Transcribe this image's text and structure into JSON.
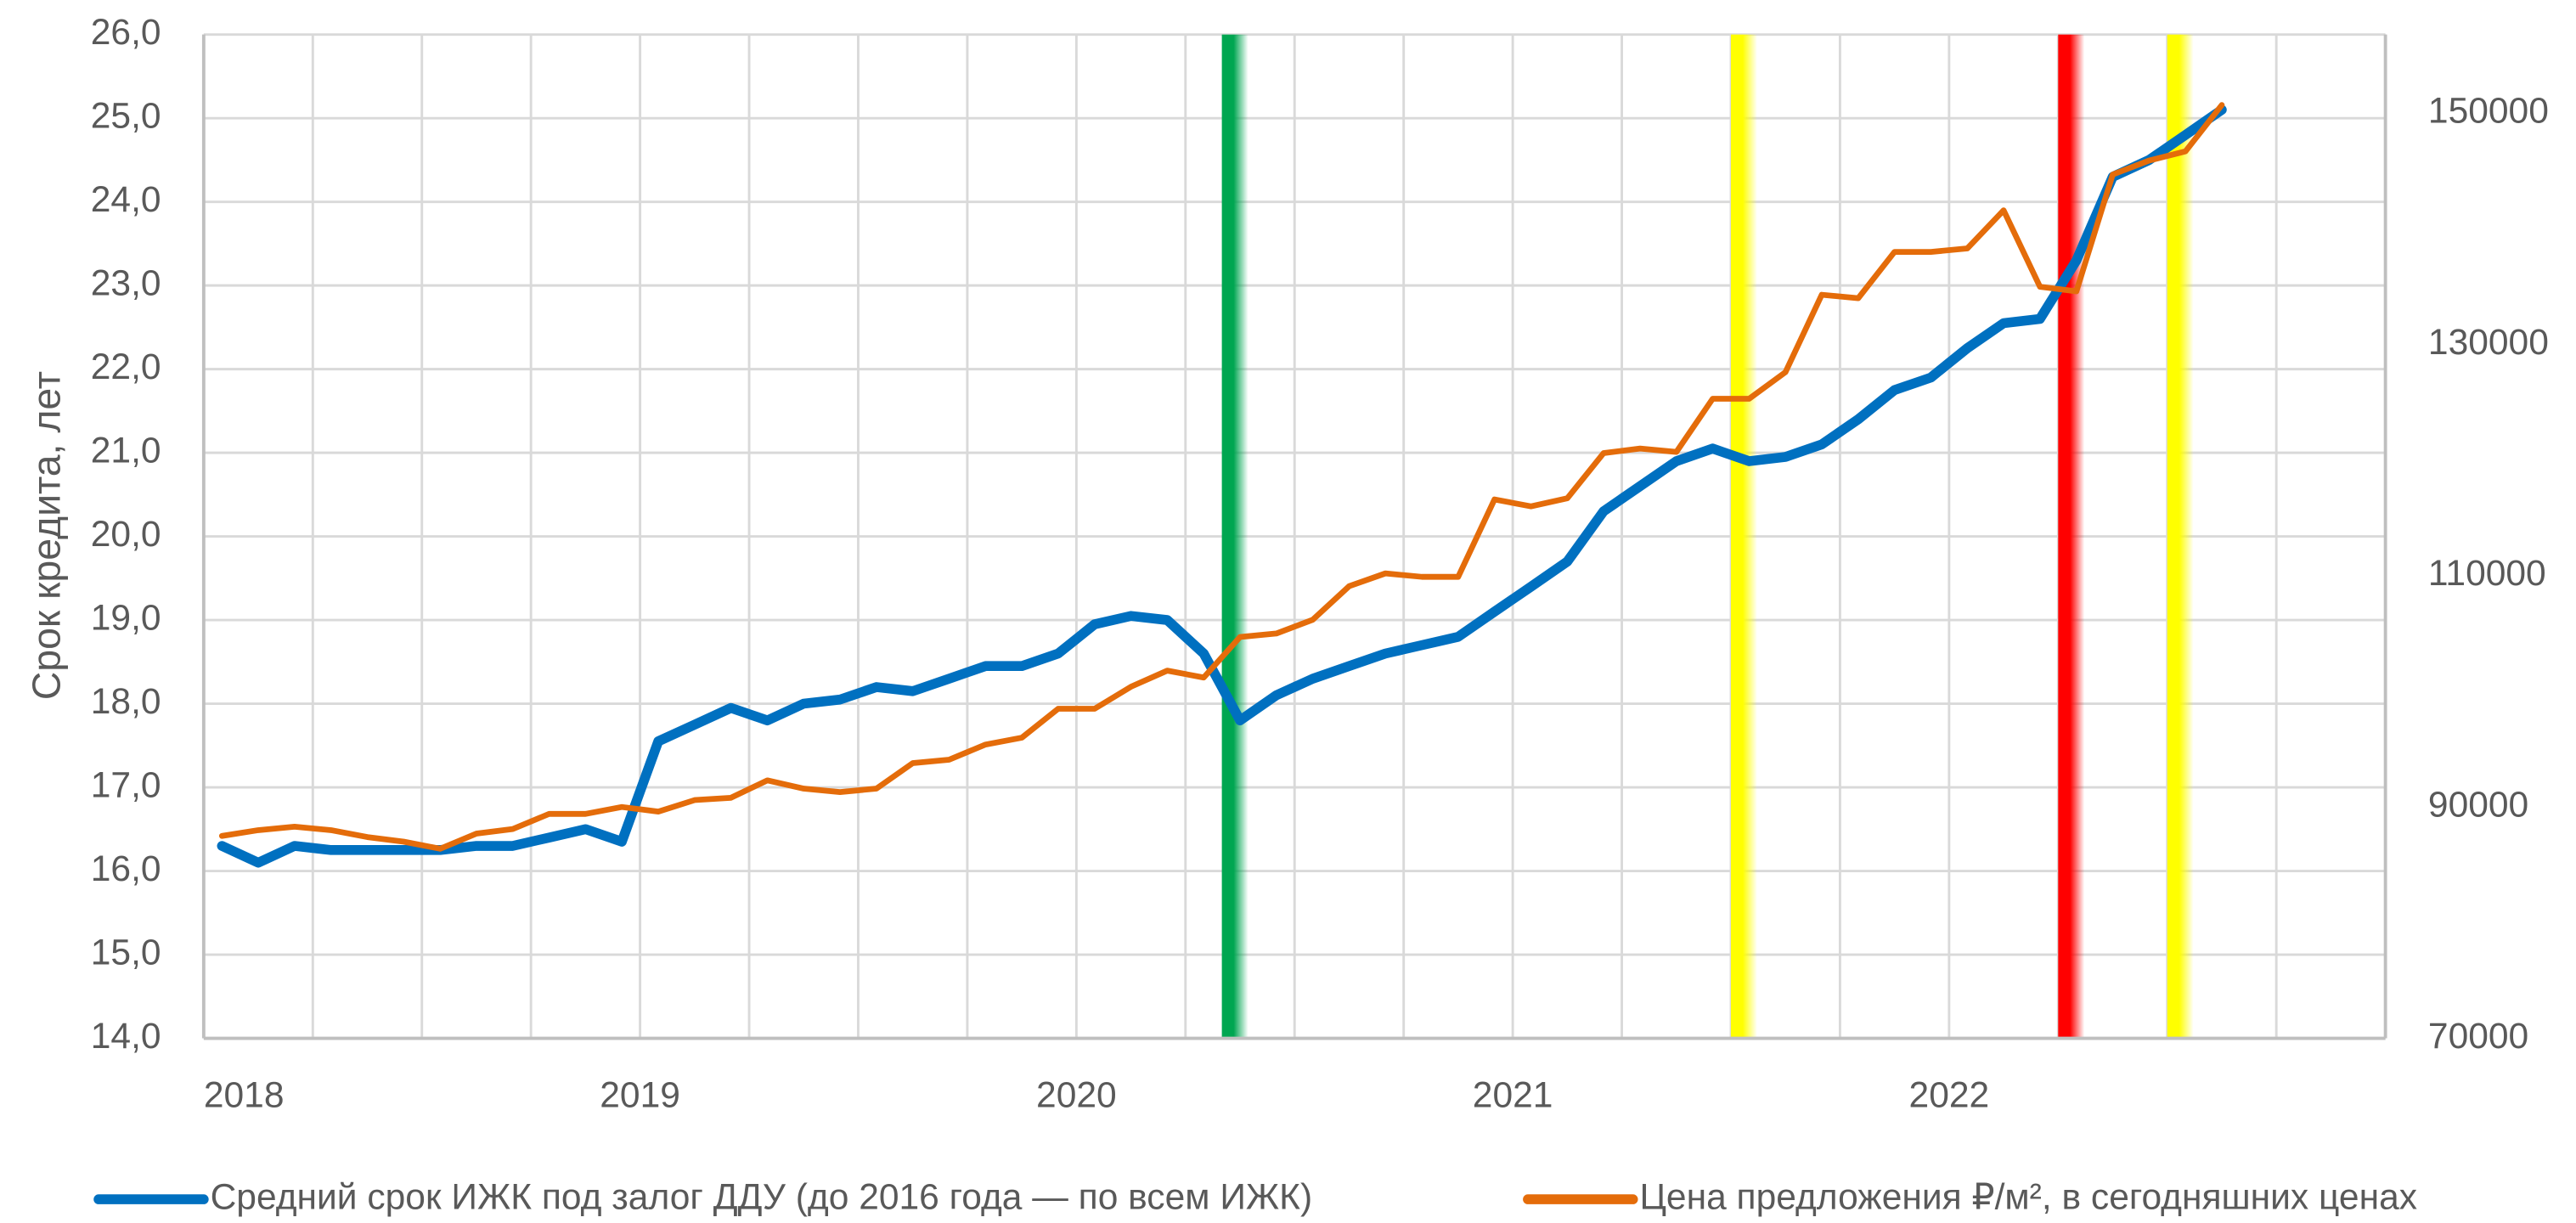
{
  "chart_data": {
    "type": "line",
    "y_axis_label": "Срок кредита, лет",
    "categories": [
      "2018",
      null,
      null,
      null,
      null,
      null,
      null,
      null,
      null,
      null,
      null,
      null,
      "2019",
      null,
      null,
      null,
      null,
      null,
      null,
      null,
      null,
      null,
      null,
      null,
      "2020",
      null,
      null,
      null,
      null,
      null,
      null,
      null,
      null,
      null,
      null,
      null,
      "2021",
      null,
      null,
      null,
      null,
      null,
      null,
      null,
      null,
      null,
      null,
      null,
      "2022",
      null,
      null,
      null,
      null,
      null,
      null,
      null,
      null,
      null,
      null,
      null
    ],
    "series": [
      {
        "name": "Средний срок ИЖК под залог ДДУ (до 2016 года — по всем ИЖК)",
        "color": "#0070c0",
        "axis": "y",
        "values": [
          16.3,
          16.1,
          16.3,
          16.25,
          16.25,
          16.25,
          16.25,
          16.3,
          16.3,
          16.4,
          16.5,
          16.35,
          17.55,
          17.75,
          17.95,
          17.8,
          18.0,
          18.05,
          18.2,
          18.15,
          18.3,
          18.45,
          18.45,
          18.6,
          18.95,
          19.05,
          19.0,
          18.6,
          17.8,
          18.1,
          18.3,
          18.45,
          18.6,
          18.7,
          18.8,
          19.1,
          19.4,
          19.7,
          20.3,
          20.6,
          20.9,
          21.05,
          20.9,
          20.95,
          21.1,
          21.4,
          21.75,
          21.9,
          22.25,
          22.55,
          22.6,
          23.3,
          24.3,
          24.5,
          24.8,
          25.1,
          null,
          null,
          null,
          null
        ]
      },
      {
        "name": "Цена предложения ₽/м², в сегодняшних ценах",
        "color": "#e46c0a",
        "axis": "y2",
        "values": [
          87500,
          88000,
          88300,
          88000,
          87400,
          87000,
          86400,
          87700,
          88100,
          89400,
          89400,
          90000,
          89600,
          90600,
          90800,
          92300,
          91600,
          91300,
          91600,
          93800,
          94100,
          95400,
          96000,
          98500,
          98500,
          100400,
          101800,
          101200,
          104700,
          105000,
          106200,
          109100,
          110200,
          109900,
          109900,
          116600,
          116000,
          116700,
          120600,
          121000,
          120700,
          125300,
          125300,
          127600,
          134300,
          134000,
          138000,
          138000,
          138300,
          141600,
          135000,
          134600,
          144700,
          145900,
          146700,
          150700,
          null,
          null,
          null,
          null
        ]
      }
    ],
    "ylim": [
      14,
      26
    ],
    "yticks": [
      {
        "value": 14,
        "label": "14,0"
      },
      {
        "value": 15,
        "label": "15,0"
      },
      {
        "value": 16,
        "label": "16,0"
      },
      {
        "value": 17,
        "label": "17,0"
      },
      {
        "value": 18,
        "label": "18,0"
      },
      {
        "value": 19,
        "label": "19,0"
      },
      {
        "value": 20,
        "label": "20,0"
      },
      {
        "value": 21,
        "label": "21,0"
      },
      {
        "value": 22,
        "label": "22,0"
      },
      {
        "value": 23,
        "label": "23,0"
      },
      {
        "value": 24,
        "label": "24,0"
      },
      {
        "value": 25,
        "label": "25,0"
      },
      {
        "value": 26,
        "label": "26,0"
      }
    ],
    "y2lim": [
      70000,
      156800
    ],
    "y2ticks": [
      70000,
      90000,
      110000,
      130000,
      150000
    ],
    "highlights": [
      {
        "index": 28,
        "color": "#00a651"
      },
      {
        "index": 42,
        "color": "#ffff00"
      },
      {
        "index": 51,
        "color": "#ff0000"
      },
      {
        "index": 54,
        "color": "#ffff00"
      }
    ],
    "grid": true,
    "legend": "bottom"
  }
}
